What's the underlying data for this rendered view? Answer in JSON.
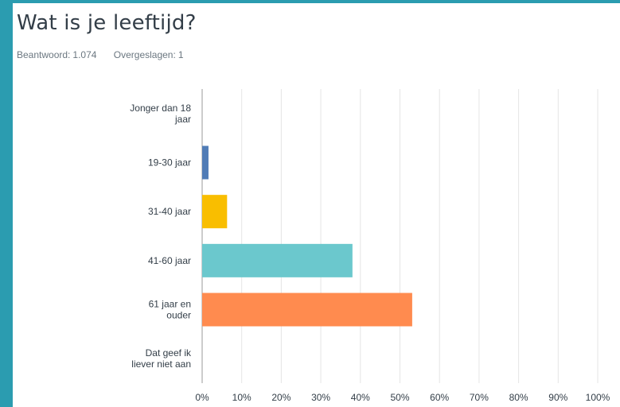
{
  "question": {
    "title": "Wat is je leeftijd?",
    "answered_label": "Beantwoord:",
    "answered_value": "1.074",
    "skipped_label": "Overgeslagen:",
    "skipped_value": "1"
  },
  "colors": {
    "frame": "#2b9cb0",
    "grid": "#e5e5e5",
    "axis": "#999999",
    "text": "#333e48"
  },
  "chart_data": {
    "type": "bar",
    "orientation": "horizontal",
    "categories": [
      [
        "Jonger dan 18",
        "jaar"
      ],
      [
        "19-30 jaar"
      ],
      [
        "31-40 jaar"
      ],
      [
        "41-60 jaar"
      ],
      [
        "61 jaar en",
        "ouder"
      ],
      [
        "Dat geef ik",
        "liever niet aan"
      ]
    ],
    "values": [
      0,
      1.6,
      6.3,
      38.0,
      53.1,
      0
    ],
    "bar_colors": [
      "#5ab0d1",
      "#507cb6",
      "#f9be00",
      "#6bc8cd",
      "#ff8b4f",
      "#b0b0b0"
    ],
    "xlim": [
      0,
      100
    ],
    "xticks": [
      "0%",
      "10%",
      "20%",
      "30%",
      "40%",
      "50%",
      "60%",
      "70%",
      "80%",
      "90%",
      "100%"
    ],
    "grid": true
  }
}
